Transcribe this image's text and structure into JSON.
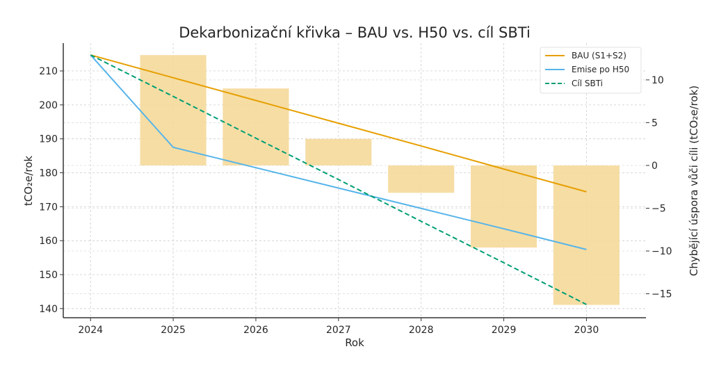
{
  "chart_data": {
    "type": "line",
    "title": "Dekarbonizační křivka – BAU vs. H50 vs. cíl SBTi",
    "xlabel": "Rok",
    "ylabel": "tCO₂e/rok",
    "y2label": "Chybějící úspora vůči cíli (tCO₂e/rok)",
    "x": [
      2024,
      2025,
      2026,
      2027,
      2028,
      2029,
      2030
    ],
    "xlim": [
      2023.67,
      2030.72
    ],
    "ylim": [
      137.3,
      218.2
    ],
    "y2lim": [
      -17.8,
      14.3
    ],
    "xticks": [
      "2024",
      "2025",
      "2026",
      "2027",
      "2028",
      "2029",
      "2030"
    ],
    "yticks": [
      140,
      150,
      160,
      170,
      180,
      190,
      200,
      210
    ],
    "y2ticks": [
      -15,
      -10,
      -5,
      0,
      5,
      10
    ],
    "grid": true,
    "legend_position": "top-right",
    "series": [
      {
        "name": "BAU (S1+S2)",
        "color": "#E69F00",
        "style": "solid",
        "values": [
          214.7,
          208.0,
          201.3,
          194.6,
          187.9,
          181.1,
          174.4
        ]
      },
      {
        "name": "Emise po H50",
        "color": "#56B4E9",
        "style": "solid",
        "values": [
          214.7,
          187.5,
          181.5,
          175.5,
          169.5,
          163.5,
          157.4
        ]
      },
      {
        "name": "Cíl SBTi",
        "color": "#009E73",
        "style": "dashed",
        "values": [
          214.7,
          202.5,
          190.2,
          178.0,
          165.7,
          153.5,
          141.2
        ]
      }
    ],
    "bars": {
      "axis": "right",
      "color": "#F5D99A",
      "x": [
        2025,
        2026,
        2027,
        2028,
        2029,
        2030
      ],
      "values": [
        12.9,
        9.0,
        3.1,
        -3.2,
        -9.6,
        -16.3
      ]
    }
  }
}
